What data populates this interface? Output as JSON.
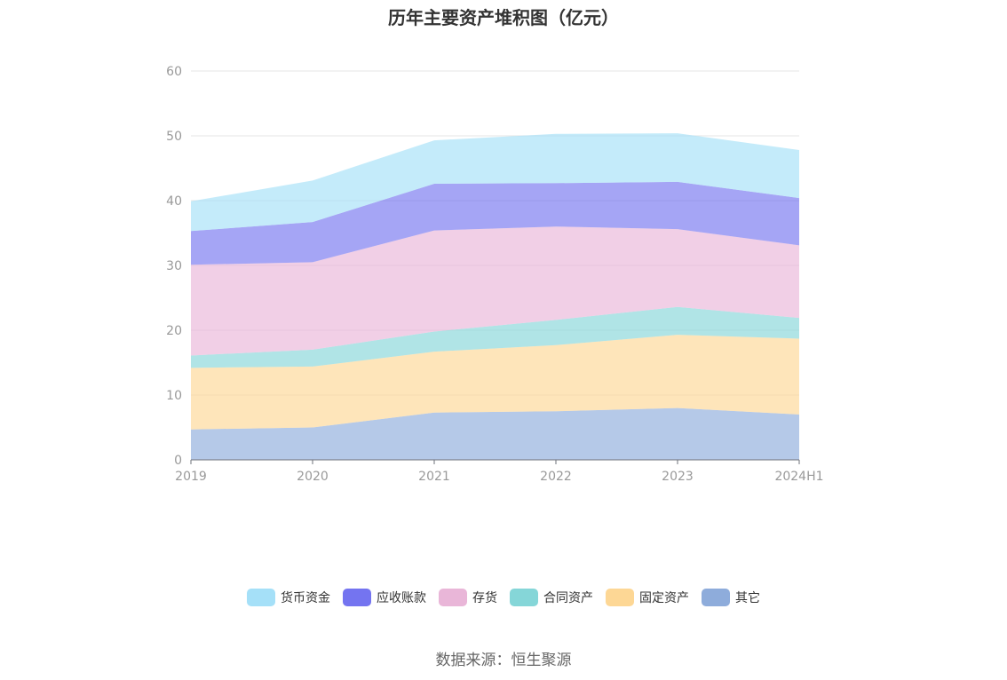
{
  "title": "历年主要资产堆积图（亿元）",
  "source": "数据来源：恒生聚源",
  "chart_data": {
    "type": "area",
    "stacked": true,
    "title": "历年主要资产堆积图（亿元）",
    "categories": [
      "2019",
      "2020",
      "2021",
      "2022",
      "2023",
      "2024H1"
    ],
    "ylim": [
      0,
      60
    ],
    "yticks": [
      0,
      10,
      20,
      30,
      40,
      50,
      60
    ],
    "grid": true,
    "legend_position": "bottom",
    "series": [
      {
        "name": "其它",
        "color": "#8eacdb",
        "values": [
          4.7,
          5.0,
          7.3,
          7.5,
          8.0,
          7.0
        ]
      },
      {
        "name": "固定资产",
        "color": "#fdd795",
        "values": [
          9.5,
          9.4,
          9.4,
          10.2,
          11.3,
          11.7
        ]
      },
      {
        "name": "合同资产",
        "color": "#85d6d8",
        "values": [
          1.9,
          2.6,
          3.1,
          3.9,
          4.3,
          3.2
        ]
      },
      {
        "name": "存货",
        "color": "#e9b6d8",
        "values": [
          14.0,
          13.5,
          15.6,
          14.4,
          12.0,
          11.2
        ]
      },
      {
        "name": "应收账款",
        "color": "#7474f0",
        "values": [
          5.2,
          6.2,
          7.2,
          6.7,
          7.3,
          7.3
        ]
      },
      {
        "name": "货币资金",
        "color": "#a5e0f8",
        "values": [
          4.6,
          6.4,
          6.7,
          7.6,
          7.5,
          7.4
        ]
      }
    ]
  },
  "legend_order": [
    "货币资金",
    "应收账款",
    "存货",
    "合同资产",
    "固定资产",
    "其它"
  ]
}
